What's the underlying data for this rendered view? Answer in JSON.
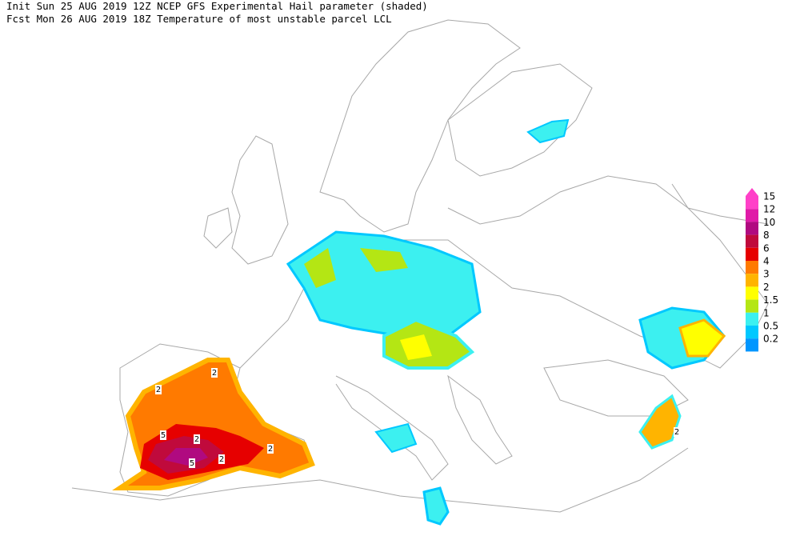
{
  "header": {
    "line1": "Init  Sun 25 AUG 2019 12Z  NCEP GFS Experimental Hail parameter (shaded)",
    "line2": "Fcst Mon 26 AUG 2019 18Z Temperature of most unstable parcel LCL"
  },
  "legend": {
    "items": [
      {
        "label": "15",
        "color": "#ff40c8"
      },
      {
        "label": "12",
        "color": "#e01aa8"
      },
      {
        "label": "10",
        "color": "#b00a80"
      },
      {
        "label": "8",
        "color": "#c00a3c"
      },
      {
        "label": "6",
        "color": "#e60000"
      },
      {
        "label": "4",
        "color": "#ff7a00"
      },
      {
        "label": "3",
        "color": "#ffb400"
      },
      {
        "label": "2",
        "color": "#ffff00"
      },
      {
        "label": "1.5",
        "color": "#b4e614"
      },
      {
        "label": "1",
        "color": "#3cf0f0"
      },
      {
        "label": "0.5",
        "color": "#00c8ff"
      },
      {
        "label": "0.2",
        "color": "#0096ff"
      }
    ]
  },
  "contour_labels": [
    "2",
    "2",
    "5",
    "5",
    "2",
    "2",
    "2",
    "2"
  ]
}
